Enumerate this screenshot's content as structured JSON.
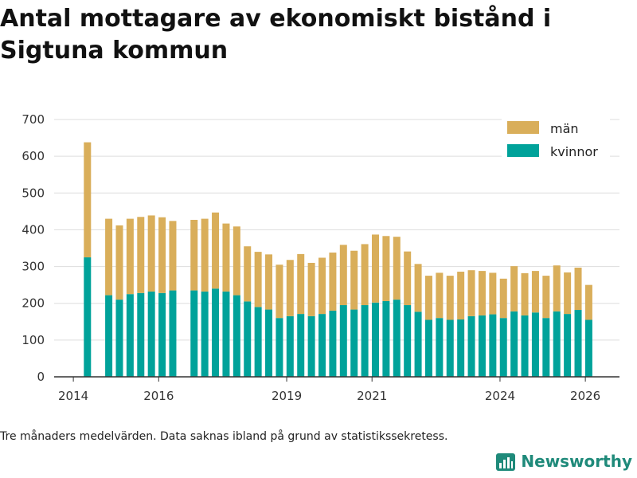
{
  "title": "Antal mottagare av ekonomiskt bistånd i Sigtuna kommun",
  "footnote": "Tre månaders medelvärden. Data saknas ibland på grund av statistikssekretess.",
  "brand": {
    "name": "Newsworthy",
    "icon": "bar-chart-logo-icon"
  },
  "colors": {
    "kvinnor": "#00a29a",
    "man": "#d9ae5a",
    "grid": "#dddddd",
    "axis": "#333333"
  },
  "chart_data": {
    "type": "bar",
    "stacked": true,
    "title": "Antal mottagare av ekonomiskt bistånd i Sigtuna kommun",
    "xlabel": "",
    "ylabel": "",
    "ylim": [
      0,
      700
    ],
    "yticks": [
      0,
      100,
      200,
      300,
      400,
      500,
      600,
      700
    ],
    "xlim": [
      2013.55,
      2026.8
    ],
    "xticks": [
      {
        "value": 2014.0,
        "label": "2014"
      },
      {
        "value": 2016.0,
        "label": "2016"
      },
      {
        "value": 2019.0,
        "label": "2019"
      },
      {
        "value": 2021.0,
        "label": "2021"
      },
      {
        "value": 2024.0,
        "label": "2024"
      },
      {
        "value": 2026.0,
        "label": "2026"
      }
    ],
    "legend": {
      "position": "top-right",
      "entries": [
        "män",
        "kvinnor"
      ]
    },
    "x": [
      2014.33,
      2014.83,
      2015.08,
      2015.33,
      2015.58,
      2015.83,
      2016.08,
      2016.33,
      2016.83,
      2017.08,
      2017.33,
      2017.58,
      2017.83,
      2018.08,
      2018.33,
      2018.58,
      2018.83,
      2019.08,
      2019.33,
      2019.58,
      2019.83,
      2020.08,
      2020.33,
      2020.58,
      2020.83,
      2021.08,
      2021.33,
      2021.58,
      2021.83,
      2022.08,
      2022.33,
      2022.58,
      2022.83,
      2023.08,
      2023.33,
      2023.58,
      2023.83,
      2024.08,
      2024.33,
      2024.58,
      2024.83,
      2025.08,
      2025.33,
      2025.58,
      2025.83,
      2026.08
    ],
    "series": [
      {
        "name": "kvinnor",
        "color": "#00a29a",
        "values": [
          325,
          222,
          210,
          225,
          228,
          232,
          228,
          235,
          235,
          232,
          240,
          232,
          222,
          205,
          190,
          183,
          160,
          165,
          171,
          165,
          171,
          180,
          195,
          183,
          195,
          202,
          206,
          210,
          195,
          177,
          155,
          160,
          155,
          156,
          165,
          167,
          170,
          160,
          178,
          167,
          175,
          160,
          178,
          171,
          182,
          155
        ]
      },
      {
        "name": "män",
        "color": "#d9ae5a",
        "values": [
          313,
          208,
          202,
          205,
          207,
          207,
          206,
          189,
          192,
          198,
          207,
          185,
          187,
          150,
          150,
          150,
          145,
          153,
          163,
          145,
          153,
          158,
          164,
          160,
          166,
          185,
          177,
          171,
          146,
          130,
          120,
          123,
          120,
          130,
          125,
          121,
          113,
          107,
          123,
          115,
          113,
          115,
          125,
          113,
          115,
          95
        ]
      }
    ]
  }
}
